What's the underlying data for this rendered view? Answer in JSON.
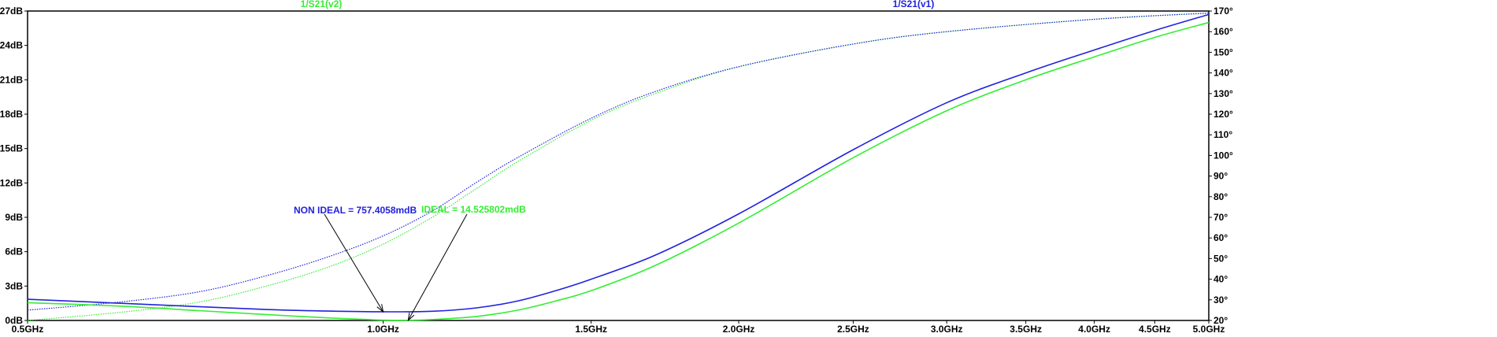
{
  "chart_data": {
    "type": "line",
    "x_scale": "log",
    "xlim_ghz": [
      0.5,
      5.0
    ],
    "x_ticks": [
      {
        "value": 0.5,
        "label": "0.5GHz"
      },
      {
        "value": 1.0,
        "label": "1.0GHz"
      },
      {
        "value": 1.5,
        "label": "1.5GHz"
      },
      {
        "value": 2.0,
        "label": "2.0GHz"
      },
      {
        "value": 2.5,
        "label": "2.5GHz"
      },
      {
        "value": 3.0,
        "label": "3.0GHz"
      },
      {
        "value": 3.5,
        "label": "3.5GHz"
      },
      {
        "value": 4.0,
        "label": "4.0GHz"
      },
      {
        "value": 4.5,
        "label": "4.5GHz"
      },
      {
        "value": 5.0,
        "label": "5.0GHz"
      }
    ],
    "y_left": {
      "ylim": [
        0,
        27
      ],
      "ticks": [
        {
          "value": 0,
          "label": "0dB"
        },
        {
          "value": 3,
          "label": "3dB"
        },
        {
          "value": 6,
          "label": "6dB"
        },
        {
          "value": 9,
          "label": "9dB"
        },
        {
          "value": 12,
          "label": "12dB"
        },
        {
          "value": 15,
          "label": "15dB"
        },
        {
          "value": 18,
          "label": "18dB"
        },
        {
          "value": 21,
          "label": "21dB"
        },
        {
          "value": 24,
          "label": "24dB"
        },
        {
          "value": 27,
          "label": "27dB"
        }
      ]
    },
    "y_right": {
      "ylim": [
        20,
        170
      ],
      "ticks": [
        {
          "value": 20,
          "label": "20°"
        },
        {
          "value": 30,
          "label": "30°"
        },
        {
          "value": 40,
          "label": "40°"
        },
        {
          "value": 50,
          "label": "50°"
        },
        {
          "value": 60,
          "label": "60°"
        },
        {
          "value": 70,
          "label": "70°"
        },
        {
          "value": 80,
          "label": "80°"
        },
        {
          "value": 90,
          "label": "90°"
        },
        {
          "value": 100,
          "label": "100°"
        },
        {
          "value": 110,
          "label": "110°"
        },
        {
          "value": 120,
          "label": "120°"
        },
        {
          "value": 130,
          "label": "130°"
        },
        {
          "value": 140,
          "label": "140°"
        },
        {
          "value": 150,
          "label": "150°"
        },
        {
          "value": 160,
          "label": "160°"
        },
        {
          "value": 170,
          "label": "170°"
        }
      ]
    },
    "series": [
      {
        "name": "1/S21(v2)",
        "color": "#33ee33",
        "magnitude_db": {
          "x": [
            0.5,
            0.6,
            0.7,
            0.8,
            0.9,
            1.0,
            1.05,
            1.1,
            1.2,
            1.3,
            1.4,
            1.5,
            1.7,
            2.0,
            2.5,
            3.0,
            3.5,
            4.0,
            4.5,
            5.0
          ],
          "y": [
            1.55,
            1.25,
            0.85,
            0.5,
            0.22,
            0.03,
            0.01,
            0.08,
            0.35,
            0.9,
            1.7,
            2.6,
            4.8,
            8.5,
            14.2,
            18.3,
            21.0,
            23.0,
            24.7,
            26.0
          ]
        },
        "phase_deg": {
          "x": [
            0.5,
            0.6,
            0.7,
            0.8,
            0.9,
            1.0,
            1.1,
            1.2,
            1.3,
            1.5,
            1.7,
            2.0,
            2.5,
            3.0,
            4.0,
            5.0
          ],
          "y": [
            20,
            24,
            29,
            37,
            46,
            57,
            70,
            84,
            97,
            117,
            130,
            143,
            154,
            160,
            166,
            169
          ]
        }
      },
      {
        "name": "1/S21(v1)",
        "color": "#2222dd",
        "magnitude_db": {
          "x": [
            0.5,
            0.6,
            0.7,
            0.8,
            0.9,
            1.0,
            1.1,
            1.2,
            1.3,
            1.4,
            1.5,
            1.7,
            2.0,
            2.5,
            3.0,
            3.5,
            4.0,
            4.5,
            5.0
          ],
          "y": [
            1.85,
            1.5,
            1.2,
            0.95,
            0.82,
            0.757,
            0.8,
            1.1,
            1.7,
            2.6,
            3.6,
            5.7,
            9.3,
            14.9,
            19.0,
            21.6,
            23.6,
            25.3,
            26.7
          ]
        },
        "phase_deg": {
          "x": [
            0.5,
            0.6,
            0.7,
            0.8,
            0.9,
            1.0,
            1.1,
            1.2,
            1.3,
            1.5,
            1.7,
            2.0,
            2.5,
            3.0,
            4.0,
            5.0
          ],
          "y": [
            25,
            29,
            34,
            42,
            51,
            61,
            73,
            87,
            99,
            118,
            131,
            143,
            154,
            160,
            166,
            169
          ]
        }
      }
    ],
    "annotations": [
      {
        "text": "NON IDEAL = 757.4058mdB",
        "color": "#2222dd",
        "x": 1.0,
        "y": 0.757
      },
      {
        "text": "IDEAL = 14.525802mdB",
        "color": "#33ee33",
        "x": 1.05,
        "y": 0.0145
      }
    ]
  }
}
